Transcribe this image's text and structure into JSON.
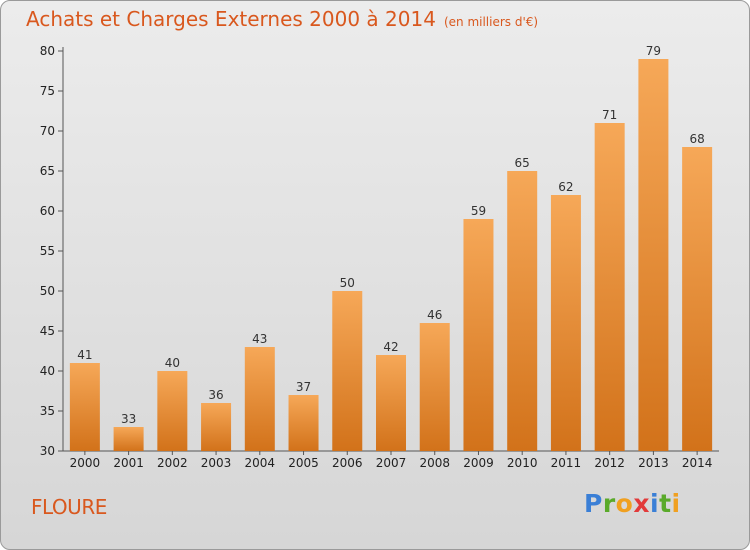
{
  "title": {
    "main": "Achats et Charges Externes 2000 à 2014",
    "unit": "(en milliers d'€)"
  },
  "place": "FLOURE",
  "logo": {
    "letters": [
      {
        "ch": "P",
        "color": "#3a7fd6"
      },
      {
        "ch": "r",
        "color": "#5aaa2a"
      },
      {
        "ch": "o",
        "color": "#f0a020"
      },
      {
        "ch": "x",
        "color": "#e23a3a"
      },
      {
        "ch": "i",
        "color": "#3a7fd6"
      },
      {
        "ch": "t",
        "color": "#5aaa2a"
      },
      {
        "ch": "i",
        "color": "#f0a020"
      }
    ]
  },
  "colors": {
    "bar_top": "#f6a858",
    "bar_bottom": "#d2721a",
    "title": "#d9581e"
  },
  "chart_data": {
    "type": "bar",
    "title": "Achats et Charges Externes 2000 à 2014",
    "subtitle": "(en milliers d'€)",
    "xlabel": "",
    "ylabel": "",
    "categories": [
      "2000",
      "2001",
      "2002",
      "2003",
      "2004",
      "2005",
      "2006",
      "2007",
      "2008",
      "2009",
      "2010",
      "2011",
      "2012",
      "2013",
      "2014"
    ],
    "values": [
      41,
      33,
      40,
      36,
      43,
      37,
      50,
      42,
      46,
      59,
      65,
      62,
      71,
      79,
      68
    ],
    "ylim": [
      30,
      80
    ],
    "yticks": [
      30,
      35,
      40,
      45,
      50,
      55,
      60,
      65,
      70,
      75,
      80
    ],
    "grid": false,
    "legend": "none"
  }
}
